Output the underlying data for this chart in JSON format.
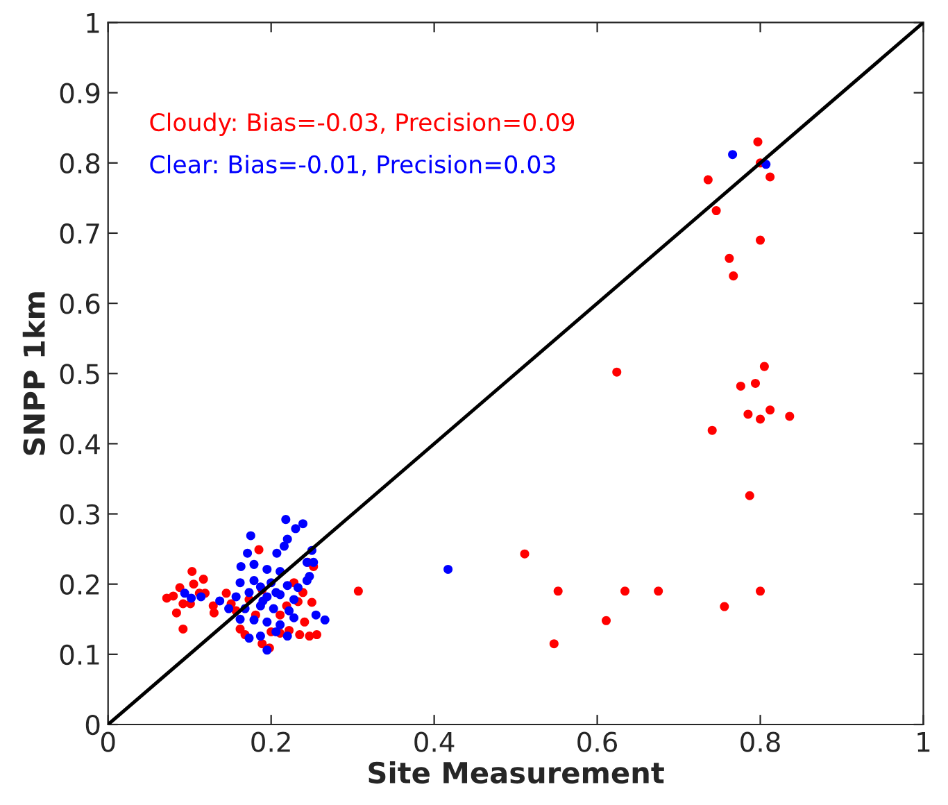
{
  "chart_data": {
    "type": "scatter",
    "xlabel": "Site Measurement",
    "ylabel": "SNPP 1km",
    "xlim": [
      0,
      1
    ],
    "ylim": [
      0,
      1
    ],
    "xticks": [
      0,
      0.2,
      0.4,
      0.6,
      0.8,
      1
    ],
    "yticks": [
      0,
      0.1,
      0.2,
      0.3,
      0.4,
      0.5,
      0.6,
      0.7,
      0.8,
      0.9,
      1
    ],
    "grid": false,
    "annotations": [
      "Cloudy: Bias=-0.03, Precision=0.09",
      "Clear: Bias=-0.01, Precision=0.03"
    ],
    "series": [
      {
        "color": "#ff0000",
        "marker": "circle",
        "x": [
          0.797,
          0.8,
          0.812,
          0.736,
          0.746,
          0.8,
          0.762,
          0.767,
          0.624,
          0.805,
          0.776,
          0.794,
          0.785,
          0.812,
          0.8,
          0.836,
          0.741,
          0.787,
          0.511,
          0.552,
          0.547,
          0.611,
          0.634,
          0.675,
          0.756,
          0.8,
          0.307,
          0.072,
          0.08,
          0.088,
          0.103,
          0.117,
          0.105,
          0.092,
          0.101,
          0.084,
          0.092,
          0.112,
          0.119,
          0.129,
          0.13,
          0.145,
          0.185,
          0.235,
          0.247,
          0.256,
          0.241,
          0.25,
          0.252,
          0.245,
          0.162,
          0.168,
          0.189,
          0.198,
          0.2,
          0.211,
          0.222,
          0.233,
          0.228,
          0.157,
          0.151,
          0.181,
          0.211,
          0.219,
          0.239,
          0.189,
          0.173
        ],
        "values": [
          0.83,
          0.8,
          0.78,
          0.776,
          0.732,
          0.69,
          0.664,
          0.639,
          0.502,
          0.51,
          0.482,
          0.486,
          0.442,
          0.448,
          0.435,
          0.439,
          0.419,
          0.326,
          0.243,
          0.19,
          0.115,
          0.148,
          0.19,
          0.19,
          0.168,
          0.19,
          0.19,
          0.18,
          0.183,
          0.195,
          0.218,
          0.207,
          0.2,
          0.172,
          0.172,
          0.159,
          0.136,
          0.187,
          0.187,
          0.169,
          0.159,
          0.187,
          0.249,
          0.128,
          0.126,
          0.128,
          0.146,
          0.174,
          0.225,
          0.231,
          0.136,
          0.128,
          0.115,
          0.109,
          0.132,
          0.13,
          0.134,
          0.175,
          0.202,
          0.162,
          0.172,
          0.156,
          0.156,
          0.169,
          0.188,
          0.192,
          0.178
        ]
      },
      {
        "color": "#0000ff",
        "marker": "circle",
        "x": [
          0.766,
          0.807,
          0.417,
          0.218,
          0.239,
          0.23,
          0.175,
          0.22,
          0.216,
          0.171,
          0.25,
          0.207,
          0.163,
          0.244,
          0.252,
          0.247,
          0.179,
          0.195,
          0.211,
          0.162,
          0.179,
          0.2,
          0.22,
          0.233,
          0.157,
          0.173,
          0.195,
          0.211,
          0.228,
          0.137,
          0.148,
          0.168,
          0.187,
          0.203,
          0.222,
          0.162,
          0.179,
          0.195,
          0.211,
          0.228,
          0.173,
          0.187,
          0.195,
          0.206,
          0.22,
          0.255,
          0.266,
          0.094,
          0.102,
          0.114,
          0.187,
          0.206,
          0.19,
          0.244
        ],
        "values": [
          0.812,
          0.798,
          0.221,
          0.292,
          0.286,
          0.279,
          0.269,
          0.264,
          0.254,
          0.244,
          0.248,
          0.244,
          0.225,
          0.231,
          0.231,
          0.211,
          0.228,
          0.221,
          0.218,
          0.202,
          0.205,
          0.202,
          0.198,
          0.195,
          0.182,
          0.188,
          0.182,
          0.185,
          0.178,
          0.176,
          0.165,
          0.165,
          0.169,
          0.165,
          0.162,
          0.15,
          0.149,
          0.146,
          0.142,
          0.152,
          0.123,
          0.126,
          0.106,
          0.132,
          0.126,
          0.156,
          0.149,
          0.187,
          0.18,
          0.182,
          0.196,
          0.188,
          0.176,
          0.205
        ]
      },
      {
        "type": "line",
        "color": "#000000",
        "x": [
          0,
          1
        ],
        "values": [
          0,
          1
        ]
      }
    ]
  }
}
